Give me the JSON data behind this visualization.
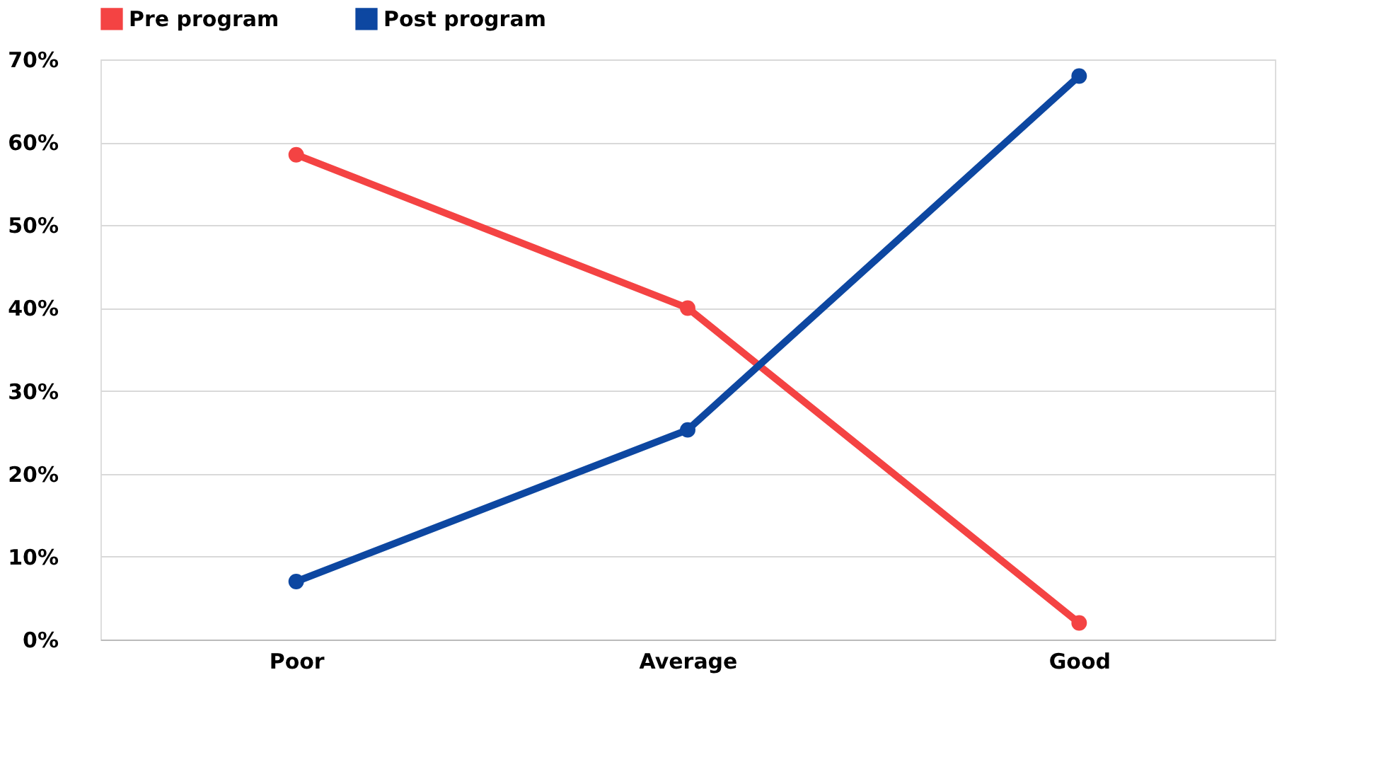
{
  "chart_data": {
    "type": "line",
    "categories": [
      "Poor",
      "Average",
      "Good"
    ],
    "series": [
      {
        "name": "Pre program",
        "color": "#f44343",
        "values": [
          58.5,
          40,
          2
        ]
      },
      {
        "name": "Post  program",
        "color": "#0d47a1",
        "values": [
          7,
          25.3,
          68
        ]
      }
    ],
    "ylim": [
      0,
      70
    ],
    "yticks": [
      {
        "value": 0,
        "label": "0%"
      },
      {
        "value": 10,
        "label": "10%"
      },
      {
        "value": 20,
        "label": "20%"
      },
      {
        "value": 30,
        "label": "30%"
      },
      {
        "value": 40,
        "label": "40%"
      },
      {
        "value": 50,
        "label": "50%"
      },
      {
        "value": 60,
        "label": "60%"
      },
      {
        "value": 70,
        "label": "70%"
      }
    ],
    "grid": "y",
    "legend": "top",
    "marker": "circle",
    "line_style": "solid"
  }
}
